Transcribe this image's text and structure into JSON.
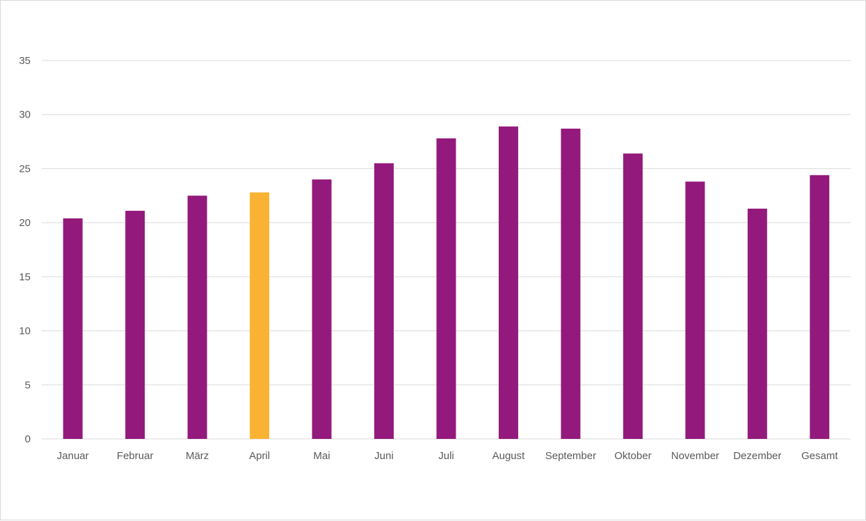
{
  "chart_data": {
    "type": "bar",
    "categories": [
      "Januar",
      "Februar",
      "März",
      "April",
      "Mai",
      "Juni",
      "Juli",
      "August",
      "September",
      "Oktober",
      "November",
      "Dezember",
      "Gesamt"
    ],
    "values": [
      20.4,
      21.1,
      22.5,
      22.8,
      24.0,
      25.5,
      27.8,
      28.9,
      28.7,
      26.4,
      23.8,
      21.3,
      24.4
    ],
    "highlight_index": 3,
    "ylim": [
      0,
      35
    ],
    "yticks": [
      "0",
      "5",
      "10",
      "15",
      "20",
      "25",
      "30",
      "35"
    ],
    "grid": true,
    "legend": "none",
    "colors": {
      "bar": "#931a7c",
      "highlight": "#f9b233",
      "grid": "#d9d9d9",
      "text": "#595959"
    }
  }
}
